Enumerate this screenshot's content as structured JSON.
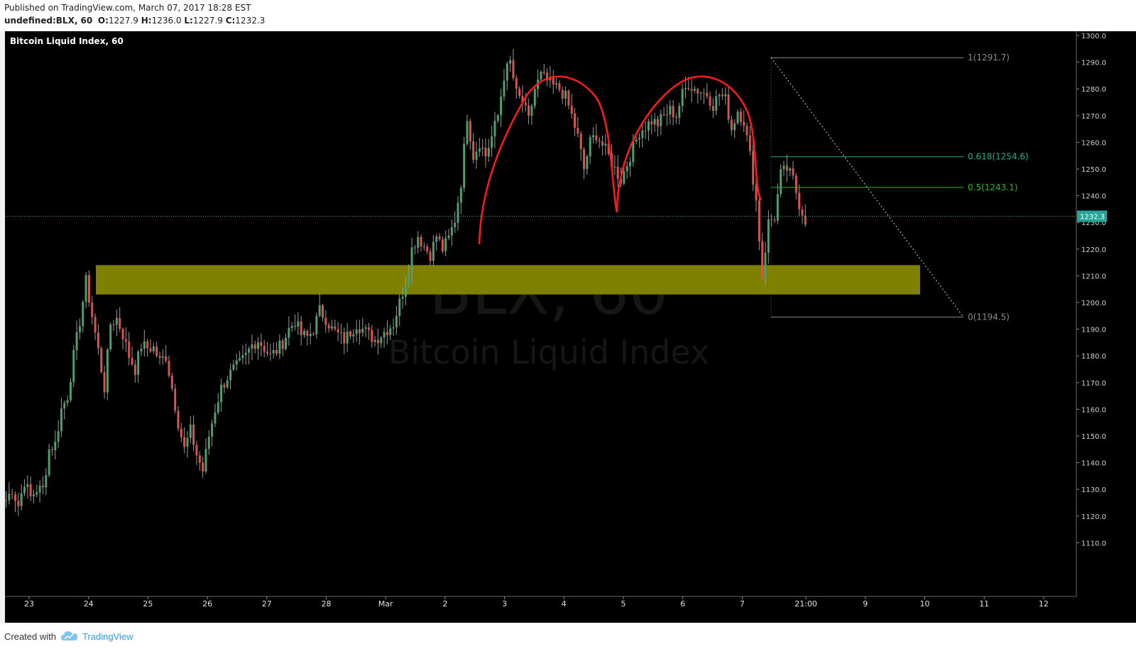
{
  "header": {
    "published": "Published on TradingView.com, March 07, 2017 18:28 EST",
    "symbol": "undefined:BLX, 60",
    "o_label": "O:",
    "o_value": "1227.9",
    "h_label": "H:",
    "h_value": "1236.0",
    "l_label": "L:",
    "l_value": "1227.9",
    "c_label": "C:",
    "c_value": "1232.3"
  },
  "footer": {
    "created_with": "Created with",
    "brand": "TradingView"
  },
  "colors": {
    "background": "#000000",
    "up_candle": "#4f9e6e",
    "down_candle": "#d9534f",
    "zone": "#7f7f00",
    "pattern": "#ff1a1a",
    "fib_1": "#8a8a8a",
    "fib_0618": "#25b08c",
    "fib_05": "#2bb52b",
    "fib_0": "#8a8a8a",
    "last_price": "#26a69a"
  },
  "icons": {
    "logo": "tradingview-cloud-icon"
  },
  "chart_data": {
    "type": "candlestick",
    "title": "Bitcoin Liquid Index, 60",
    "watermark_symbol": "BLX, 60",
    "watermark_name": "Bitcoin Liquid Index",
    "ylim": [
      1100,
      1305
    ],
    "y_ticks": [
      "1300.0",
      "1290.0",
      "1280.0",
      "1270.0",
      "1260.0",
      "1250.0",
      "1240.0",
      "1230.0",
      "1220.0",
      "1210.0",
      "1200.0",
      "1190.0",
      "1180.0",
      "1170.0",
      "1160.0",
      "1150.0",
      "1140.0",
      "1130.0",
      "1120.0",
      "1110.0"
    ],
    "x_ticks": [
      "23",
      "24",
      "25",
      "26",
      "27",
      "28",
      "Mar",
      "2",
      "3",
      "4",
      "5",
      "6",
      "7",
      "21:00",
      "9",
      "10",
      "11",
      "12"
    ],
    "last_price": "1232.3",
    "support_zone": {
      "low": 1203,
      "high": 1214
    },
    "fibonacci": [
      {
        "label": "1(1291.7)",
        "level": 1291.7
      },
      {
        "label": "0.618(1254.6)",
        "level": 1254.6
      },
      {
        "label": "0.5(1243.1)",
        "level": 1243.1
      },
      {
        "label": "0(1194.5)",
        "level": 1194.5
      }
    ],
    "path_anchors": [
      [
        0,
        1126
      ],
      [
        2,
        1130
      ],
      [
        4,
        1124
      ],
      [
        6,
        1133
      ],
      [
        8,
        1127
      ],
      [
        10,
        1130
      ],
      [
        12,
        1130
      ],
      [
        14,
        1145
      ],
      [
        16,
        1147
      ],
      [
        18,
        1160
      ],
      [
        20,
        1165
      ],
      [
        22,
        1180
      ],
      [
        24,
        1193
      ],
      [
        26,
        1208
      ],
      [
        28,
        1195
      ],
      [
        30,
        1182
      ],
      [
        32,
        1168
      ],
      [
        34,
        1192
      ],
      [
        36,
        1194
      ],
      [
        38,
        1188
      ],
      [
        40,
        1180
      ],
      [
        42,
        1175
      ],
      [
        44,
        1184
      ],
      [
        46,
        1183
      ],
      [
        48,
        1183
      ],
      [
        50,
        1178
      ],
      [
        52,
        1180
      ],
      [
        54,
        1168
      ],
      [
        56,
        1155
      ],
      [
        58,
        1145
      ],
      [
        60,
        1152
      ],
      [
        62,
        1143
      ],
      [
        64,
        1137
      ],
      [
        66,
        1150
      ],
      [
        68,
        1160
      ],
      [
        70,
        1168
      ],
      [
        72,
        1172
      ],
      [
        74,
        1175
      ],
      [
        76,
        1177
      ],
      [
        78,
        1180
      ],
      [
        80,
        1184
      ],
      [
        82,
        1186
      ],
      [
        84,
        1183
      ],
      [
        86,
        1180
      ],
      [
        88,
        1182
      ],
      [
        90,
        1185
      ],
      [
        92,
        1190
      ],
      [
        94,
        1193
      ],
      [
        96,
        1188
      ],
      [
        98,
        1187
      ],
      [
        100,
        1190
      ],
      [
        102,
        1197
      ],
      [
        104,
        1194
      ],
      [
        106,
        1190
      ],
      [
        108,
        1188
      ],
      [
        110,
        1186
      ],
      [
        112,
        1189
      ],
      [
        114,
        1192
      ],
      [
        116,
        1190
      ],
      [
        118,
        1188
      ],
      [
        120,
        1186
      ],
      [
        122,
        1188
      ],
      [
        124,
        1190
      ],
      [
        126,
        1192
      ],
      [
        128,
        1200
      ],
      [
        130,
        1208
      ],
      [
        132,
        1220
      ],
      [
        134,
        1225
      ],
      [
        136,
        1221
      ],
      [
        138,
        1218
      ],
      [
        140,
        1225
      ],
      [
        142,
        1220
      ],
      [
        144,
        1224
      ],
      [
        146,
        1231
      ],
      [
        148,
        1245
      ],
      [
        150,
        1270
      ],
      [
        152,
        1255
      ],
      [
        154,
        1260
      ],
      [
        156,
        1255
      ],
      [
        158,
        1262
      ],
      [
        160,
        1270
      ],
      [
        162,
        1285
      ],
      [
        164,
        1290
      ],
      [
        166,
        1278
      ],
      [
        168,
        1275
      ],
      [
        170,
        1268
      ],
      [
        172,
        1280
      ],
      [
        174,
        1285
      ],
      [
        176,
        1283
      ],
      [
        178,
        1281
      ],
      [
        180,
        1280
      ],
      [
        182,
        1277
      ],
      [
        184,
        1270
      ],
      [
        186,
        1262
      ],
      [
        188,
        1250
      ],
      [
        190,
        1260
      ],
      [
        192,
        1263
      ],
      [
        194,
        1259
      ],
      [
        196,
        1255
      ],
      [
        198,
        1250
      ],
      [
        200,
        1246
      ],
      [
        202,
        1252
      ],
      [
        204,
        1258
      ],
      [
        206,
        1264
      ],
      [
        208,
        1266
      ],
      [
        210,
        1268
      ],
      [
        212,
        1267
      ],
      [
        214,
        1270
      ],
      [
        216,
        1272
      ],
      [
        218,
        1270
      ],
      [
        220,
        1278
      ],
      [
        222,
        1282
      ],
      [
        224,
        1280
      ],
      [
        226,
        1279
      ],
      [
        228,
        1278
      ],
      [
        230,
        1274
      ],
      [
        232,
        1278
      ],
      [
        234,
        1276
      ],
      [
        236,
        1265
      ],
      [
        238,
        1272
      ],
      [
        240,
        1268
      ],
      [
        242,
        1255
      ],
      [
        244,
        1238
      ],
      [
        246,
        1210
      ],
      [
        248,
        1230
      ],
      [
        250,
        1232
      ],
      [
        252,
        1248
      ],
      [
        254,
        1250
      ],
      [
        256,
        1246
      ],
      [
        258,
        1237
      ],
      [
        260,
        1231
      ]
    ]
  }
}
